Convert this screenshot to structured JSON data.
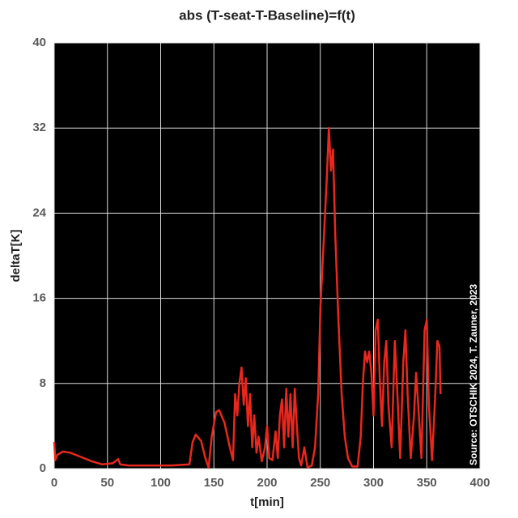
{
  "chart_data": {
    "type": "line",
    "title": "abs (T-seat-T-Baseline)=f(t)",
    "x_label": "t[min]",
    "y_label": "deltaT[K]",
    "annotation": "Source: OTSCHIK 2024, T. Zauner, 2023",
    "xlim": [
      0,
      400
    ],
    "xticks": [
      0,
      50,
      100,
      150,
      200,
      250,
      300,
      350,
      400
    ],
    "ylim": [
      0,
      40
    ],
    "yticks": [
      0,
      8,
      16,
      24,
      32,
      40
    ],
    "grid": true,
    "background": "#000000",
    "color": "#e8281e",
    "x": [
      0,
      1,
      3,
      8,
      15,
      25,
      35,
      45,
      55,
      60,
      62,
      70,
      90,
      110,
      127,
      130,
      133,
      138,
      142,
      145,
      148,
      152,
      155,
      160,
      165,
      168,
      170,
      172,
      174,
      176,
      178,
      180,
      182,
      184,
      186,
      188,
      190,
      192,
      195,
      198,
      200,
      202,
      205,
      208,
      210,
      212,
      214,
      216,
      218,
      220,
      222,
      224,
      226,
      228,
      230,
      232,
      235,
      238,
      242,
      245,
      248,
      250,
      253,
      256,
      258,
      260,
      262,
      264,
      267,
      270,
      273,
      276,
      280,
      285,
      288,
      290,
      292,
      294,
      296,
      298,
      300,
      302,
      304,
      306,
      308,
      310,
      312,
      314,
      317,
      320,
      322,
      325,
      328,
      330,
      332,
      335,
      338,
      340,
      342,
      345,
      348,
      350,
      352,
      355,
      358,
      360,
      362,
      363
    ],
    "values": [
      2.5,
      0.8,
      1.3,
      1.6,
      1.5,
      1.1,
      0.7,
      0.4,
      0.5,
      0.9,
      0.4,
      0.3,
      0.3,
      0.3,
      0.4,
      2.5,
      3.2,
      2.6,
      1,
      0.1,
      3,
      5.3,
      5.5,
      4.3,
      2,
      0.8,
      7,
      5,
      8,
      9.5,
      6,
      8.5,
      4,
      7,
      2,
      5,
      1.5,
      3,
      0.7,
      2,
      4,
      1,
      0.8,
      3.5,
      1,
      5,
      6.5,
      2,
      7.5,
      3,
      7,
      2,
      7.5,
      4,
      1,
      0.3,
      2,
      0.1,
      0.3,
      2,
      7,
      15,
      21,
      27,
      32,
      28,
      30,
      22,
      14,
      7,
      3,
      1,
      0.2,
      0.2,
      3,
      8,
      11,
      10,
      11,
      9,
      5,
      13,
      14,
      8,
      4,
      10,
      12,
      6,
      2,
      12,
      8,
      1,
      10,
      13,
      7,
      1,
      5,
      9,
      6,
      1,
      13,
      14,
      6,
      0.8,
      7,
      12,
      11.5,
      7
    ]
  }
}
